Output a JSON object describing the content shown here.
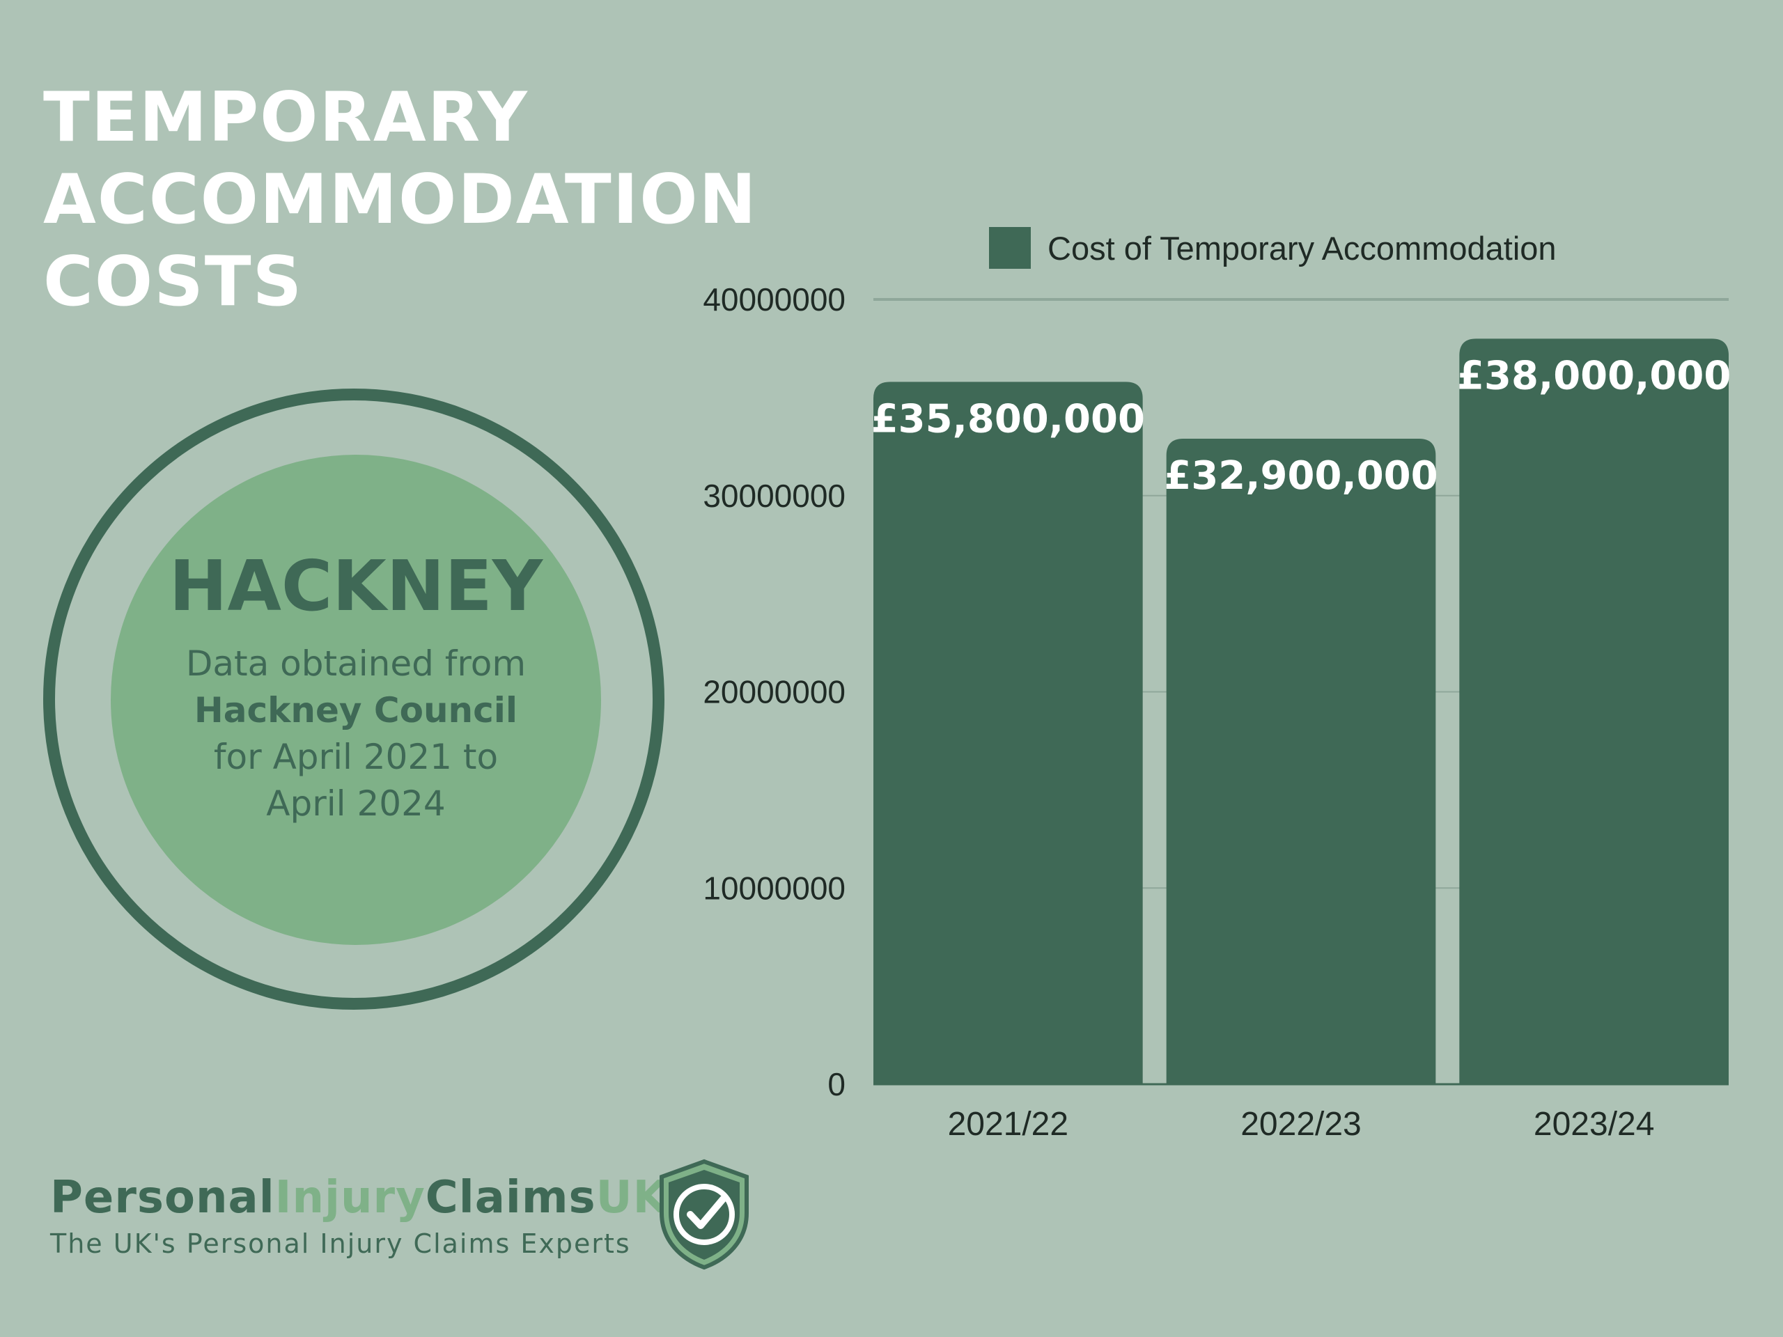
{
  "title": {
    "line1": "TEMPORARY",
    "line2": "ACCOMMODATION",
    "line3": "COSTS"
  },
  "info": {
    "council": "HACKNEY",
    "note_line1": "Data obtained from",
    "note_line2": "Hackney Council",
    "note_line3": "for April 2021 to",
    "note_line4": "April 2024"
  },
  "brand": {
    "name_part1": "Personal",
    "name_part2": "Injury",
    "name_part3": "Claims",
    "name_part4": "UK",
    "tagline": "The UK's Personal Injury Claims Experts"
  },
  "colors": {
    "background": "#aec3b6",
    "bar": "#3f6956",
    "accent_light": "#7fb188",
    "title_text": "#ffffff"
  },
  "chart_data": {
    "type": "bar",
    "categories": [
      "2021/22",
      "2022/23",
      "2023/24"
    ],
    "series": [
      {
        "name": "Cost of Temporary Accommodation",
        "values": [
          35800000,
          32900000,
          38000000
        ]
      }
    ],
    "data_labels": [
      "£35,800,000",
      "£32,900,000",
      "£38,000,000"
    ],
    "y_ticks": [
      "0",
      "10000000",
      "20000000",
      "30000000",
      "40000000"
    ],
    "ylim": [
      0,
      40000000
    ],
    "legend_position": "top",
    "grid": true
  }
}
